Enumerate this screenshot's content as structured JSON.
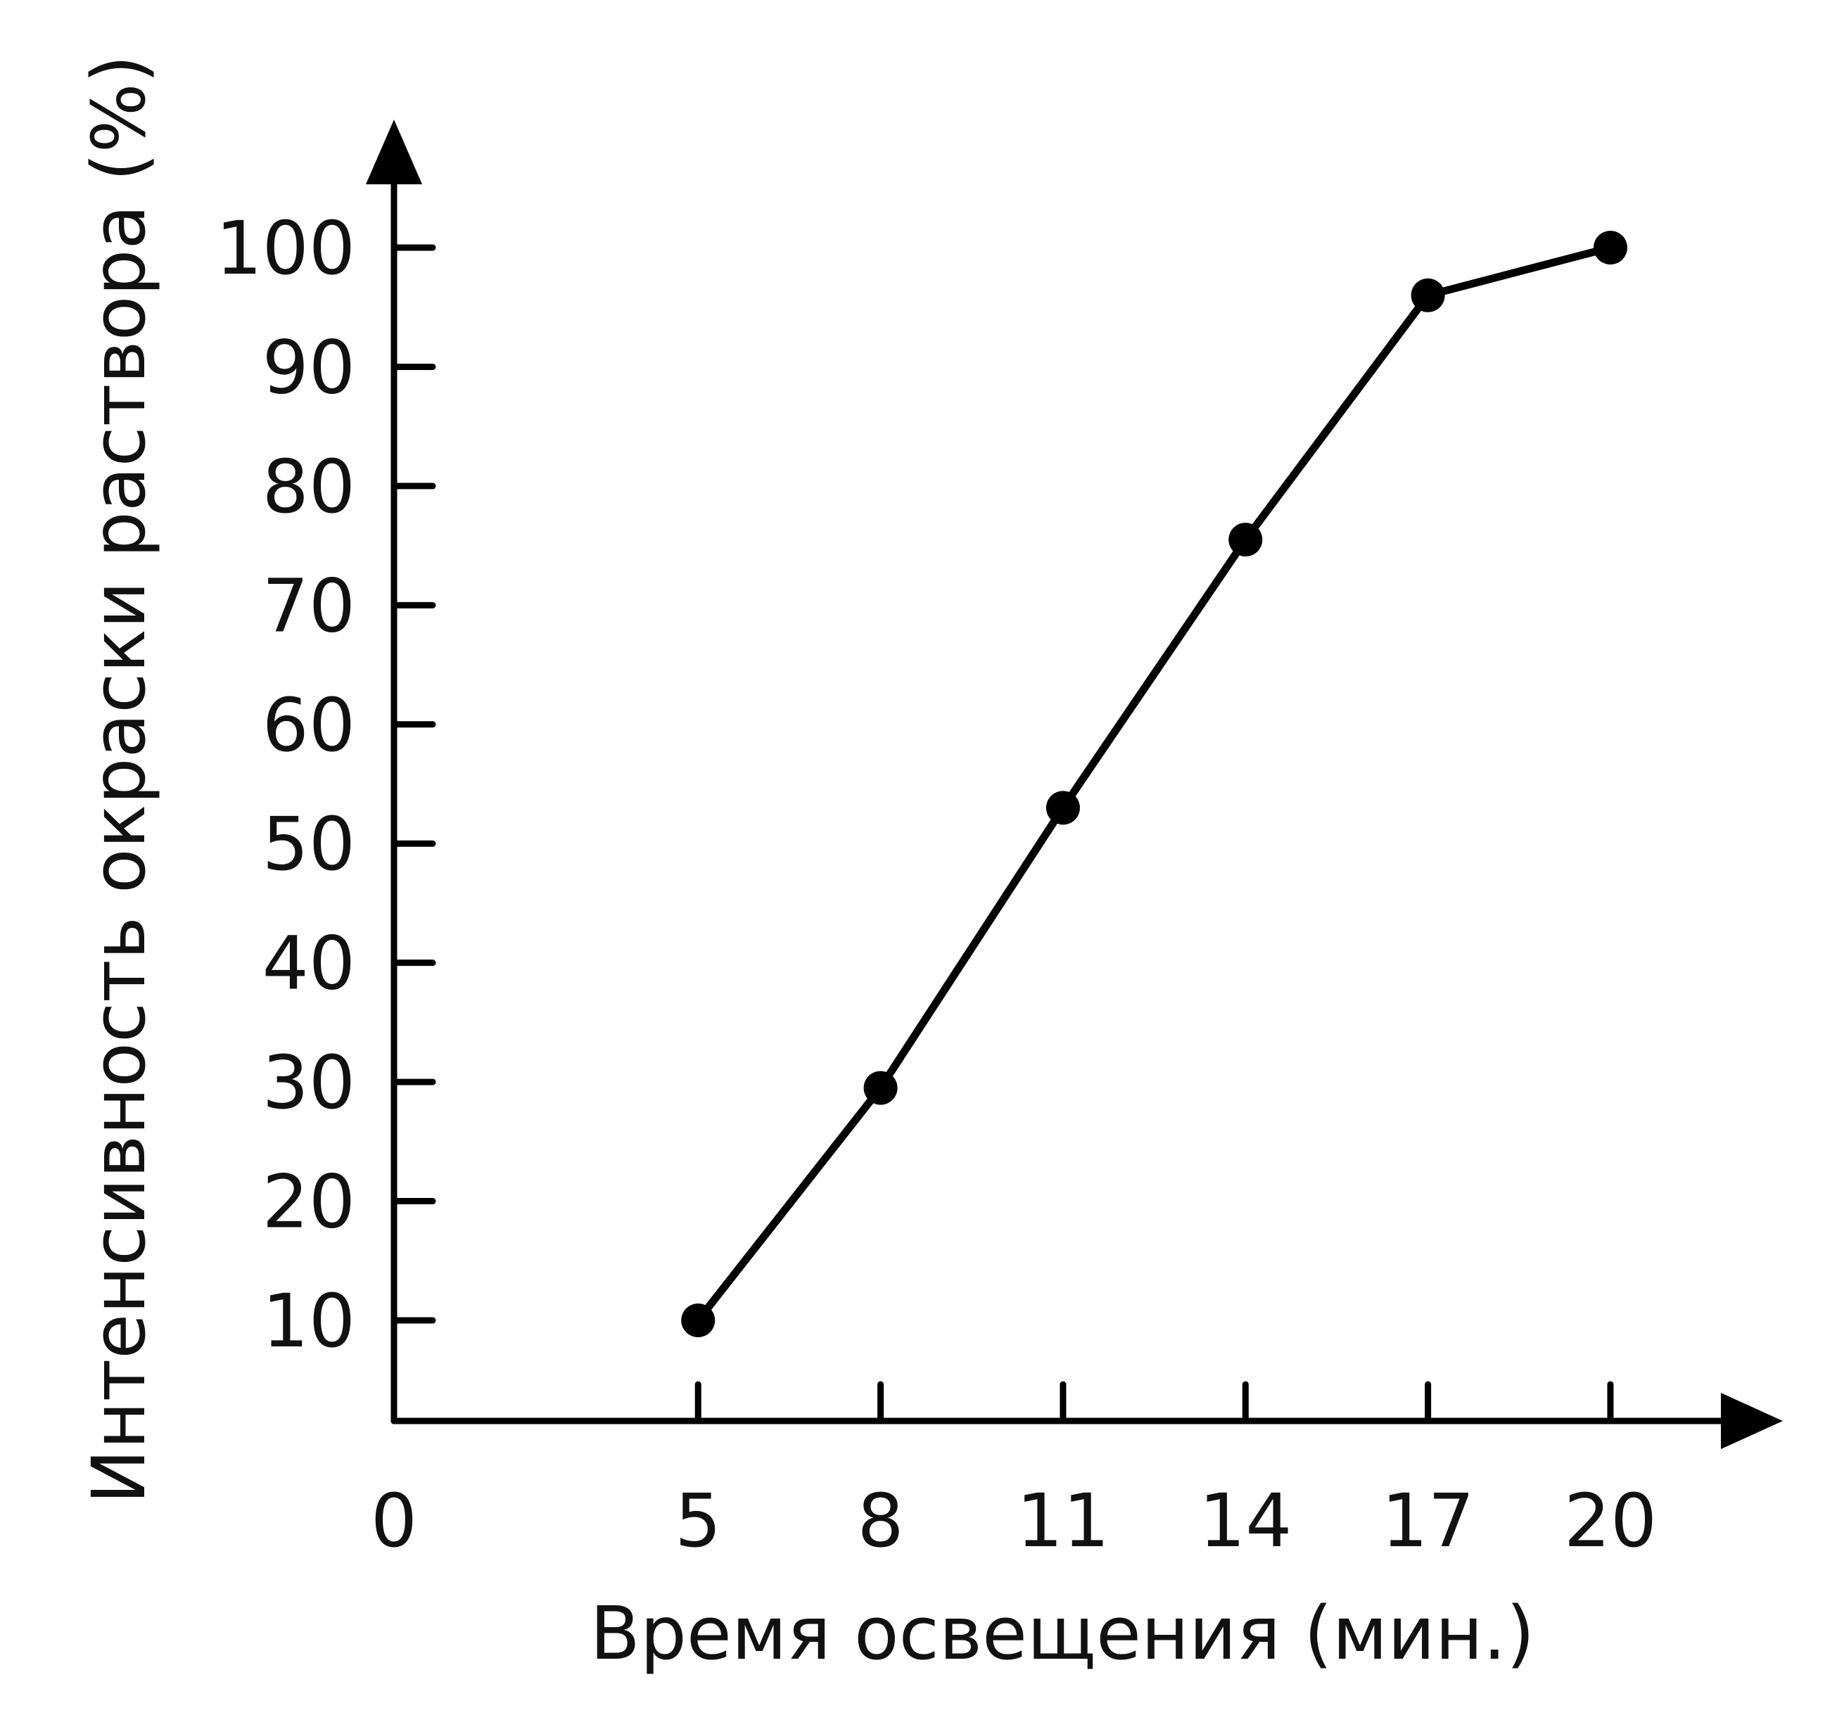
{
  "chart_data": {
    "type": "line",
    "title": "",
    "xlabel": "Время освещения (мин.)",
    "ylabel": "Интенсивность окраски раствора (%)",
    "origin_label": "0",
    "x_ticks": [
      "5",
      "8",
      "11",
      "14",
      "17",
      "20"
    ],
    "y_ticks": [
      "10",
      "20",
      "30",
      "40",
      "50",
      "60",
      "70",
      "80",
      "90",
      "100"
    ],
    "xlim": [
      0,
      22.5
    ],
    "ylim": [
      1.4,
      110
    ],
    "grid": false,
    "legend": "none",
    "colors": {
      "line": "#000000",
      "text": "#111111"
    },
    "series": [
      {
        "x": [
          5,
          8,
          11,
          14,
          17,
          20
        ],
        "y": [
          10,
          29.5,
          53,
          75.5,
          96,
          100
        ]
      }
    ]
  }
}
